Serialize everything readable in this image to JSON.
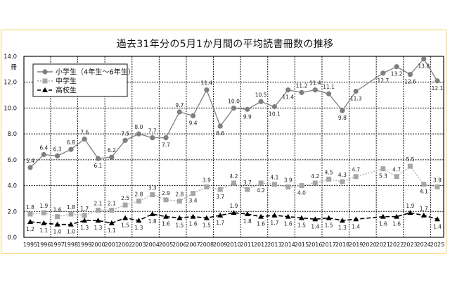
{
  "chart_data": {
    "type": "line",
    "title": "過去31年分の5月1か月間の平均読書冊数の推移",
    "xlabel": "",
    "ylabel": "冊",
    "ylim": [
      0,
      14
    ],
    "yticks": [
      "0.0",
      "2.0",
      "4.0",
      "6.0",
      "8.0",
      "10.0",
      "12.0",
      "14.0"
    ],
    "grid": true,
    "legend_position": "upper-left",
    "x": [
      "1995",
      "1996",
      "1997",
      "1998",
      "1999",
      "2000",
      "2001",
      "2002",
      "2003",
      "2004",
      "2005",
      "2006",
      "2007",
      "2008",
      "2009",
      "2010",
      "2011",
      "2012",
      "2013",
      "2014",
      "2015",
      "2016",
      "2017",
      "2018",
      "2019",
      "2020",
      "2021",
      "2022",
      "2023",
      "2024",
      "2025"
    ],
    "series": [
      {
        "name": "小学生（4年生～6年生）",
        "marker": "circle",
        "line": "solid",
        "color": "#7f7f7f",
        "values": [
          5.4,
          6.4,
          6.3,
          6.8,
          7.6,
          6.1,
          6.2,
          7.5,
          8.0,
          7.7,
          7.7,
          9.7,
          9.4,
          11.4,
          8.6,
          10.0,
          9.9,
          10.5,
          10.1,
          11.4,
          11.2,
          11.4,
          11.1,
          9.8,
          11.3,
          null,
          12.7,
          13.2,
          12.6,
          13.8,
          12.1
        ]
      },
      {
        "name": "中学生",
        "marker": "square",
        "line": "dotted",
        "color": "#a6a6a6",
        "values": [
          1.8,
          1.9,
          1.6,
          1.8,
          1.7,
          2.1,
          2.1,
          2.5,
          2.8,
          3.3,
          2.9,
          2.8,
          3.4,
          3.9,
          3.7,
          4.2,
          3.7,
          4.2,
          4.1,
          3.9,
          4.0,
          4.2,
          4.5,
          4.3,
          4.7,
          null,
          5.3,
          4.7,
          5.5,
          4.1,
          3.9
        ]
      },
      {
        "name": "高校生",
        "marker": "triangle",
        "line": "dashed",
        "color": "#000000",
        "values": [
          1.2,
          1.1,
          1.0,
          1.0,
          1.3,
          1.3,
          1.1,
          1.5,
          1.3,
          1.8,
          1.6,
          1.5,
          1.6,
          1.5,
          1.7,
          1.9,
          1.8,
          1.6,
          1.7,
          1.6,
          1.5,
          1.4,
          1.5,
          1.3,
          1.4,
          null,
          1.6,
          1.6,
          1.9,
          1.7,
          1.4
        ]
      }
    ]
  },
  "colors": {
    "frame_border": "#f3cf55",
    "elementary": "#7f7f7f",
    "junior_high": "#a6a6a6",
    "high_school": "#000000"
  }
}
